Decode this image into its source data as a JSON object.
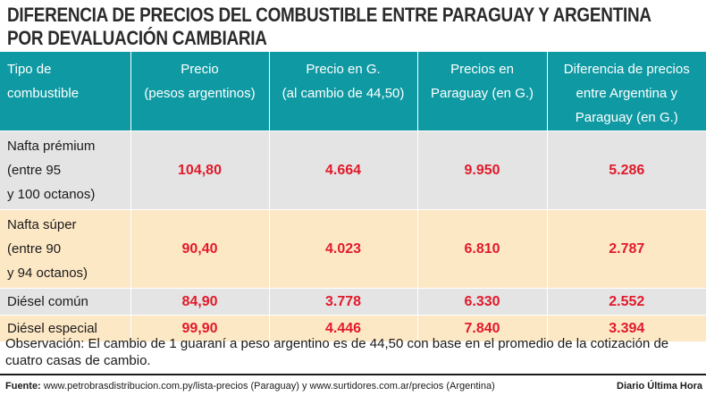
{
  "title": "DIFERENCIA DE PRECIOS DEL COMBUSTIBLE ENTRE PARAGUAY Y ARGENTINA POR DEVALUACIÓN CAMBIARIA",
  "table": {
    "headers": [
      {
        "line1": "Tipo de",
        "line2": "combustible",
        "line3": ""
      },
      {
        "line1": "Precio",
        "line2": "(pesos argentinos)",
        "line3": ""
      },
      {
        "line1": "Precio en G.",
        "line2": "(al cambio de 44,50)",
        "line3": ""
      },
      {
        "line1": "Precios en",
        "line2": "Paraguay (en G.)",
        "line3": ""
      },
      {
        "line1": "Diferencia de precios",
        "line2": "entre Argentina y",
        "line3": "Paraguay (en G.)"
      }
    ],
    "rows": [
      {
        "name1": "Nafta prémium",
        "name2": "(entre 95",
        "name3": "y 100 octanos)",
        "values": [
          "104,80",
          "4.664",
          "9.950",
          "5.286"
        ]
      },
      {
        "name1": "Nafta súper",
        "name2": "(entre 90",
        "name3": "y 94 octanos)",
        "values": [
          "90,40",
          "4.023",
          "6.810",
          "2.787"
        ]
      },
      {
        "name1": "Diésel común",
        "name2": "",
        "name3": "",
        "values": [
          "84,90",
          "3.778",
          "6.330",
          "2.552"
        ]
      },
      {
        "name1": "Diésel especial",
        "name2": "",
        "name3": "",
        "values": [
          "99,90",
          "4.446",
          "7.840",
          "3.394"
        ]
      }
    ]
  },
  "observation": "Observación: El cambio de 1 guaraní a peso argentino es de 44,50 con base en el promedio de la cotización de cuatro casas de cambio.",
  "footer": {
    "label": "Fuente:",
    "text": "www.petrobrasdistribucion.com.py/lista-precios (Paraguay) y www.surtidores.com.ar/precios (Argentina)",
    "brand": "Diario Última Hora"
  },
  "colors": {
    "header_bg": "#0f9aa3",
    "row_gray": "#e4e4e4",
    "row_beige": "#fde8c6",
    "value_red": "#e11a2b"
  }
}
